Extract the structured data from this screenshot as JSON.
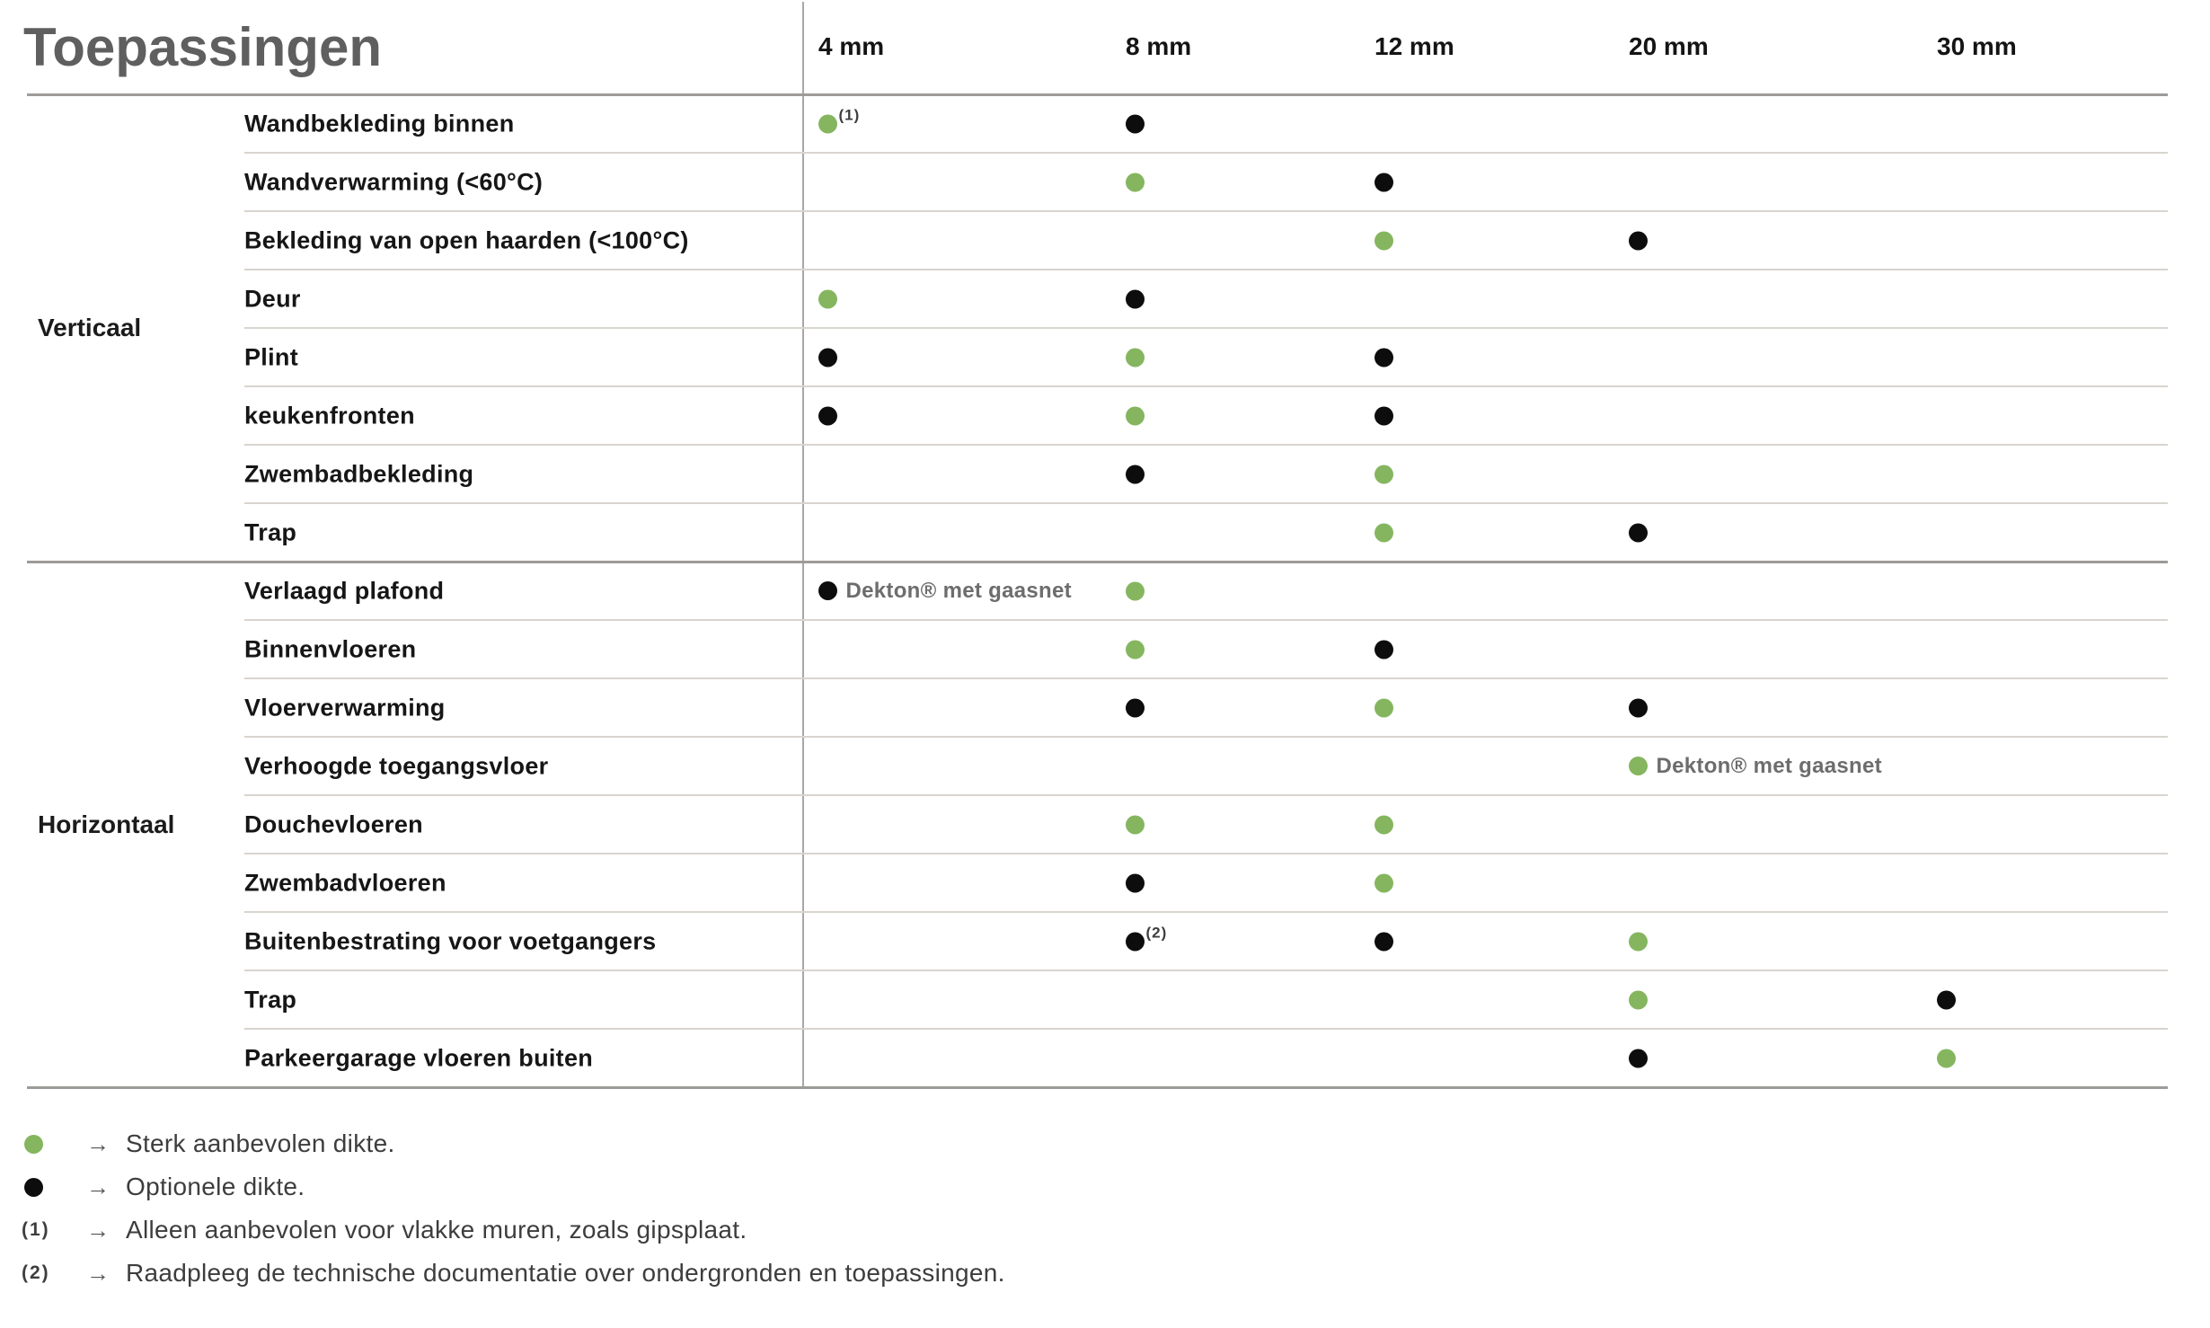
{
  "title": "Toepassingen",
  "columns": [
    "4 mm",
    "8 mm",
    "12 mm",
    "20 mm",
    "30 mm"
  ],
  "colors": {
    "recommended": "#85b65f",
    "optional": "#0d0d0d",
    "title": "#5f5f5f"
  },
  "groups": [
    {
      "label": "Verticaal",
      "rows": [
        {
          "label": "Wandbekleding binnen",
          "cells": [
            {
              "col": 0,
              "type": "recommended",
              "sup": "(1)"
            },
            {
              "col": 1,
              "type": "optional"
            }
          ]
        },
        {
          "label": "Wandverwarming (<60°C)",
          "cells": [
            {
              "col": 1,
              "type": "recommended"
            },
            {
              "col": 2,
              "type": "optional"
            }
          ]
        },
        {
          "label": "Bekleding van open haarden (<100°C)",
          "cells": [
            {
              "col": 2,
              "type": "recommended"
            },
            {
              "col": 3,
              "type": "optional"
            }
          ]
        },
        {
          "label": "Deur",
          "cells": [
            {
              "col": 0,
              "type": "recommended"
            },
            {
              "col": 1,
              "type": "optional"
            }
          ]
        },
        {
          "label": "Plint",
          "cells": [
            {
              "col": 0,
              "type": "optional"
            },
            {
              "col": 1,
              "type": "recommended"
            },
            {
              "col": 2,
              "type": "optional"
            }
          ]
        },
        {
          "label": "keukenfronten",
          "cells": [
            {
              "col": 0,
              "type": "optional"
            },
            {
              "col": 1,
              "type": "recommended"
            },
            {
              "col": 2,
              "type": "optional"
            }
          ]
        },
        {
          "label": "Zwembadbekleding",
          "cells": [
            {
              "col": 1,
              "type": "optional"
            },
            {
              "col": 2,
              "type": "recommended"
            }
          ]
        },
        {
          "label": "Trap",
          "cells": [
            {
              "col": 2,
              "type": "recommended"
            },
            {
              "col": 3,
              "type": "optional"
            }
          ]
        }
      ]
    },
    {
      "label": "Horizontaal",
      "rows": [
        {
          "label": "Verlaagd plafond",
          "cells": [
            {
              "col": 0,
              "type": "optional",
              "note": "Dekton® met gaasnet"
            },
            {
              "col": 1,
              "type": "recommended"
            }
          ]
        },
        {
          "label": "Binnenvloeren",
          "cells": [
            {
              "col": 1,
              "type": "recommended"
            },
            {
              "col": 2,
              "type": "optional"
            }
          ]
        },
        {
          "label": "Vloerverwarming",
          "cells": [
            {
              "col": 1,
              "type": "optional"
            },
            {
              "col": 2,
              "type": "recommended"
            },
            {
              "col": 3,
              "type": "optional"
            }
          ]
        },
        {
          "label": "Verhoogde toegangsvloer",
          "cells": [
            {
              "col": 3,
              "type": "recommended",
              "note": "Dekton® met gaasnet"
            }
          ]
        },
        {
          "label": "Douchevloeren",
          "cells": [
            {
              "col": 1,
              "type": "recommended"
            },
            {
              "col": 2,
              "type": "recommended"
            }
          ]
        },
        {
          "label": "Zwembadvloeren",
          "cells": [
            {
              "col": 1,
              "type": "optional"
            },
            {
              "col": 2,
              "type": "recommended"
            }
          ]
        },
        {
          "label": "Buitenbestrating voor voetgangers",
          "cells": [
            {
              "col": 1,
              "type": "optional",
              "sup": "(2)"
            },
            {
              "col": 2,
              "type": "optional"
            },
            {
              "col": 3,
              "type": "recommended"
            }
          ]
        },
        {
          "label": "Trap",
          "cells": [
            {
              "col": 3,
              "type": "recommended"
            },
            {
              "col": 4,
              "type": "optional"
            }
          ]
        },
        {
          "label": "Parkeergarage vloeren buiten",
          "cells": [
            {
              "col": 3,
              "type": "optional"
            },
            {
              "col": 4,
              "type": "recommended"
            }
          ]
        }
      ]
    }
  ],
  "legend": [
    {
      "marker": "dot-recommended",
      "marker_text": "",
      "arrow": "→",
      "text": "Sterk aanbevolen dikte."
    },
    {
      "marker": "dot-optional",
      "marker_text": "",
      "arrow": "→",
      "text": "Optionele dikte."
    },
    {
      "marker": "sup",
      "marker_text": "(1)",
      "arrow": "→",
      "text": "Alleen aanbevolen voor vlakke muren, zoals gipsplaat."
    },
    {
      "marker": "sup",
      "marker_text": "(2)",
      "arrow": "→",
      "text": "Raadpleeg de technische documentatie over ondergronden en toepassingen."
    }
  ]
}
